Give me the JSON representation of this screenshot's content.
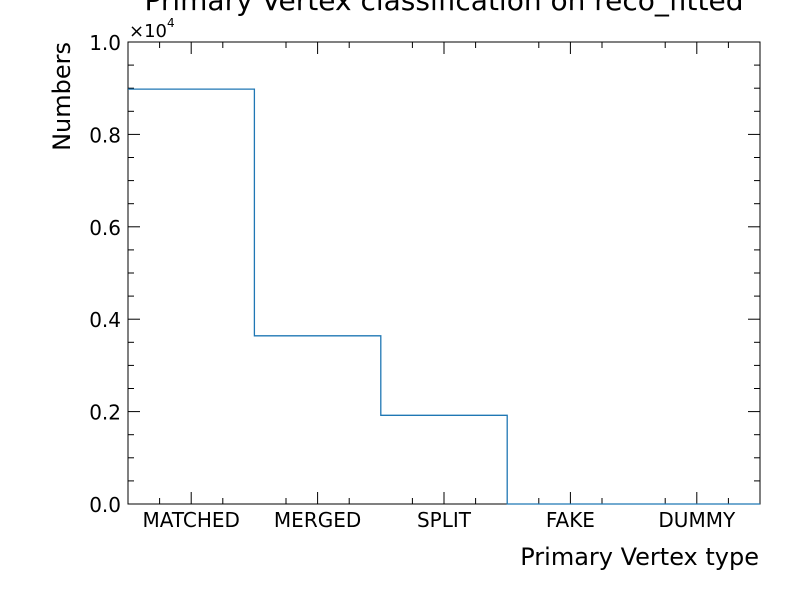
{
  "chart_data": {
    "type": "histogram",
    "title": "Primary Vertex classification on reco_fitted",
    "xlabel": "Primary Vertex type",
    "ylabel": "Numbers",
    "y_scale_label": "×10",
    "y_scale_exponent": "4",
    "y_multiplier": 10000,
    "categories": [
      "MATCHED",
      "MERGED",
      "SPLIT",
      "FAKE",
      "DUMMY"
    ],
    "series": [
      {
        "values": [
          8980,
          3640,
          1920,
          0,
          0
        ],
        "color": "#1f77b4"
      }
    ],
    "ylim": [
      0,
      10000
    ],
    "yticks": [
      "0.0",
      "0.2",
      "0.4",
      "0.6",
      "0.8",
      "1.0"
    ],
    "grid": false,
    "legend": "none"
  }
}
